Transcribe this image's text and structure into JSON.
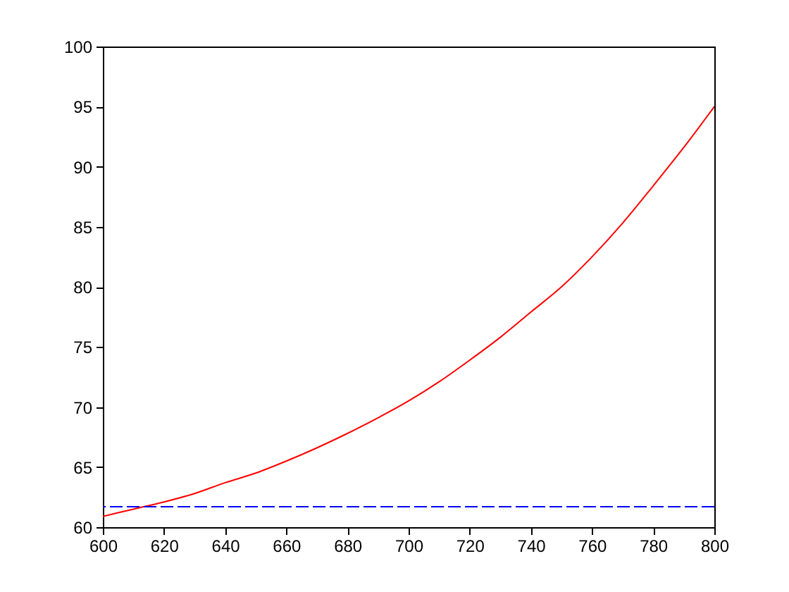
{
  "chart_data": {
    "type": "line",
    "x": [
      600,
      610,
      620,
      630,
      640,
      650,
      660,
      670,
      680,
      690,
      700,
      710,
      720,
      730,
      740,
      750,
      760,
      770,
      780,
      790,
      800
    ],
    "series": [
      {
        "color": "#ff0000",
        "values": [
          60.9,
          61.5,
          62.1,
          62.8,
          63.7,
          64.5,
          65.5,
          66.6,
          67.8,
          69.1,
          70.5,
          72.1,
          73.9,
          75.8,
          77.9,
          80.0,
          82.5,
          85.3,
          88.4,
          91.6,
          95.0
        ]
      }
    ],
    "xlim": [
      600,
      800
    ],
    "xticks": [
      600,
      620,
      640,
      660,
      680,
      700,
      720,
      740,
      760,
      780,
      800
    ],
    "ylim": [
      60,
      100
    ],
    "yticks": [
      60,
      65,
      70,
      75,
      80,
      85,
      90,
      95,
      100
    ],
    "grid": false,
    "marker": "none",
    "line_style": "solid",
    "ref_lines": [
      {
        "axis": "y",
        "value": 61.7,
        "color": "#0000ff",
        "line_style": "dashed"
      }
    ]
  }
}
